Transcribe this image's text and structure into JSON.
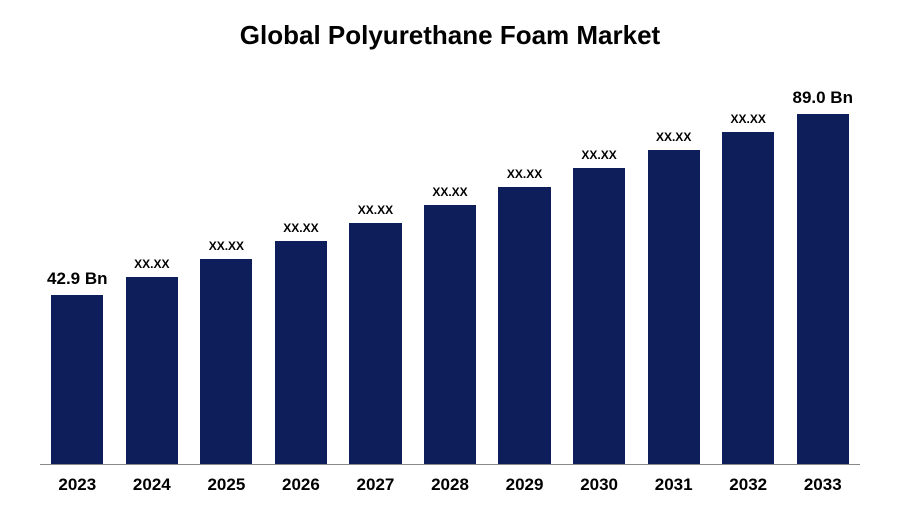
{
  "chart": {
    "type": "bar",
    "title": "Global Polyurethane Foam Market",
    "title_fontsize": 26,
    "title_fontweight": "bold",
    "title_color": "#000000",
    "background_color": "#ffffff",
    "bar_color": "#0e1e5b",
    "bar_width_pct": 70,
    "axis_line_color": "#888888",
    "categories": [
      "2023",
      "2024",
      "2025",
      "2026",
      "2027",
      "2028",
      "2029",
      "2030",
      "2031",
      "2032",
      "2033"
    ],
    "values": [
      42.9,
      47.5,
      52.1,
      56.7,
      61.3,
      65.9,
      70.5,
      75.2,
      79.8,
      84.4,
      89.0
    ],
    "value_labels": [
      "42.9 Bn",
      "XX.XX",
      "XX.XX",
      "XX.XX",
      "XX.XX",
      "XX.XX",
      "XX.XX",
      "XX.XX",
      "XX.XX",
      "XX.XX",
      "89.0 Bn"
    ],
    "label_fontsize_large": 17,
    "label_fontsize_small": 12,
    "label_fontweight": "bold",
    "label_color": "#000000",
    "xlabel_fontsize": 17,
    "xlabel_fontweight": "bold",
    "xlabel_color": "#000000",
    "ymax": 100
  }
}
